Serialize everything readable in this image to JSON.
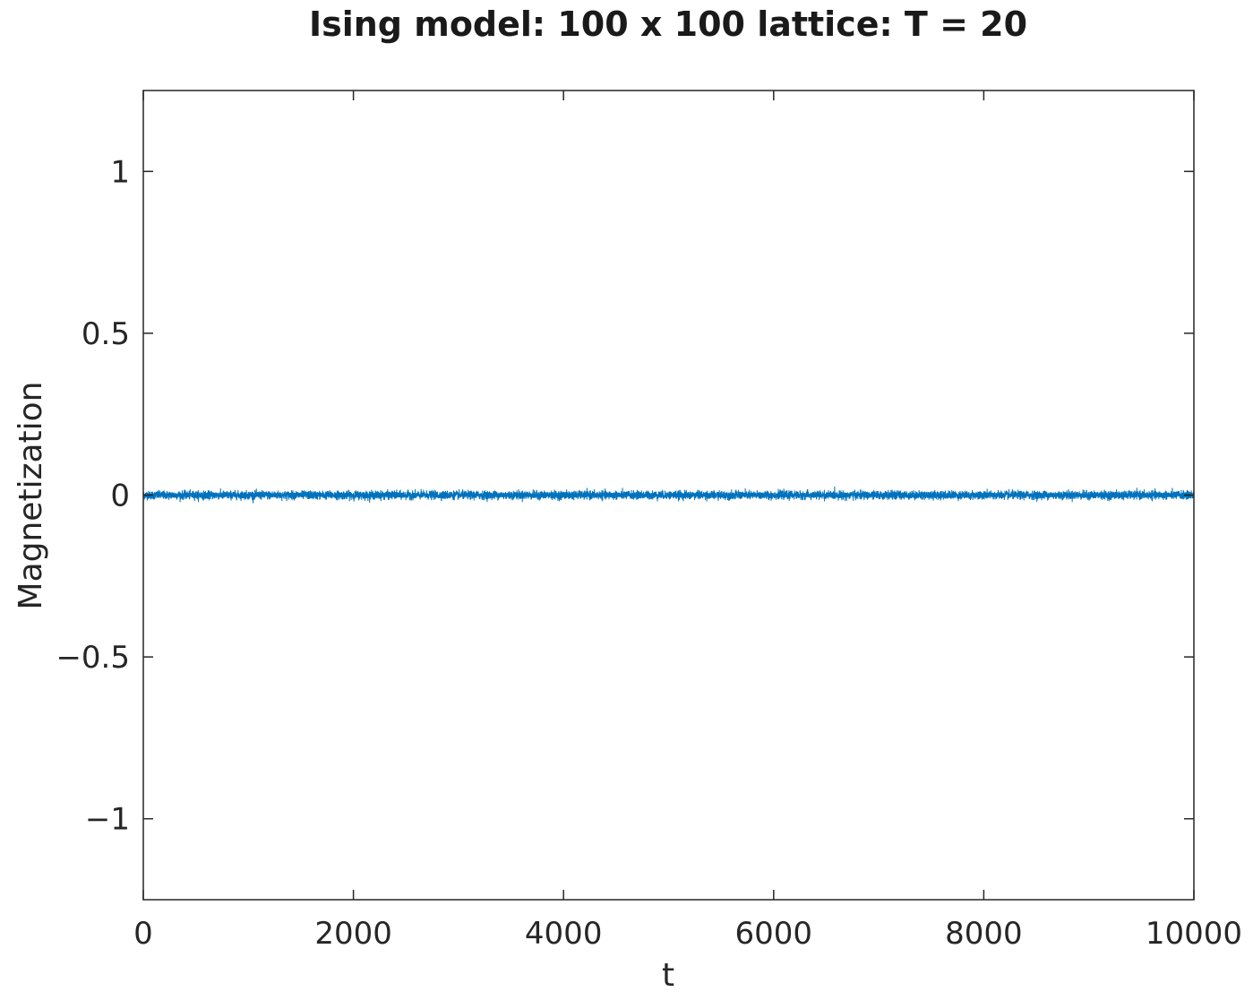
{
  "chart_data": {
    "type": "line",
    "title": "Ising model: 100 x 100 lattice: T = 20",
    "xlabel": "t",
    "ylabel": "Magnetization",
    "xlim": [
      0,
      10000
    ],
    "ylim": [
      -1.25,
      1.25
    ],
    "xticks": [
      0,
      2000,
      4000,
      6000,
      8000,
      10000
    ],
    "xtick_labels": [
      "0",
      "2000",
      "4000",
      "6000",
      "8000",
      "10000"
    ],
    "yticks": [
      -1,
      -0.5,
      0,
      0.5,
      1
    ],
    "ytick_labels": [
      "−1",
      "−0.5",
      "0",
      "0.5",
      "1"
    ],
    "grid": false,
    "legend": "none",
    "series": [
      {
        "color": "#0072BD",
        "description_values": {
          "x_start": 0,
          "x_end": 10000,
          "n_points": 10000,
          "mean": 0.0,
          "typical_amplitude": 0.01,
          "max_abs": 0.04
        }
      }
    ]
  }
}
